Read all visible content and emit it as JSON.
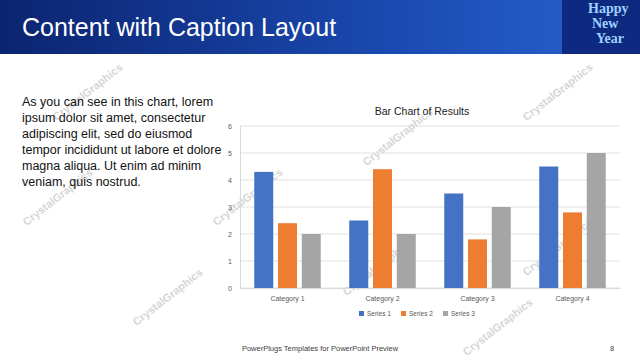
{
  "slide": {
    "title": "Content with Caption Layout",
    "caption": "As you can see in this chart, lorem ipsum dolor sit amet, consectetur adipiscing elit, sed do eiusmod tempor incididunt ut labore et dolore magna aliqua. Ut enim ad minim veniam, quis nostrud.",
    "footer": "PowerPlugs Templates for PowerPoint Preview",
    "page_number": 8,
    "watermark": "CrystalGraphics",
    "corner_art": [
      "Happy",
      "New",
      "Year"
    ]
  },
  "chart_data": {
    "type": "bar",
    "title": "Bar Chart of Results",
    "categories": [
      "Category 1",
      "Category 2",
      "Category 3",
      "Category 4"
    ],
    "series": [
      {
        "name": "Series 1",
        "color": "#4472c4",
        "values": [
          4.3,
          2.5,
          3.5,
          4.5
        ]
      },
      {
        "name": "Series 2",
        "color": "#ed7d31",
        "values": [
          2.4,
          4.4,
          1.8,
          2.8
        ]
      },
      {
        "name": "Series 3",
        "color": "#a5a5a5",
        "values": [
          2,
          2,
          3,
          5
        ]
      }
    ],
    "ylim": [
      0,
      6
    ],
    "yticks": [
      0,
      1,
      2,
      3,
      4,
      5,
      6
    ],
    "grid": true,
    "legend": "bottom"
  }
}
